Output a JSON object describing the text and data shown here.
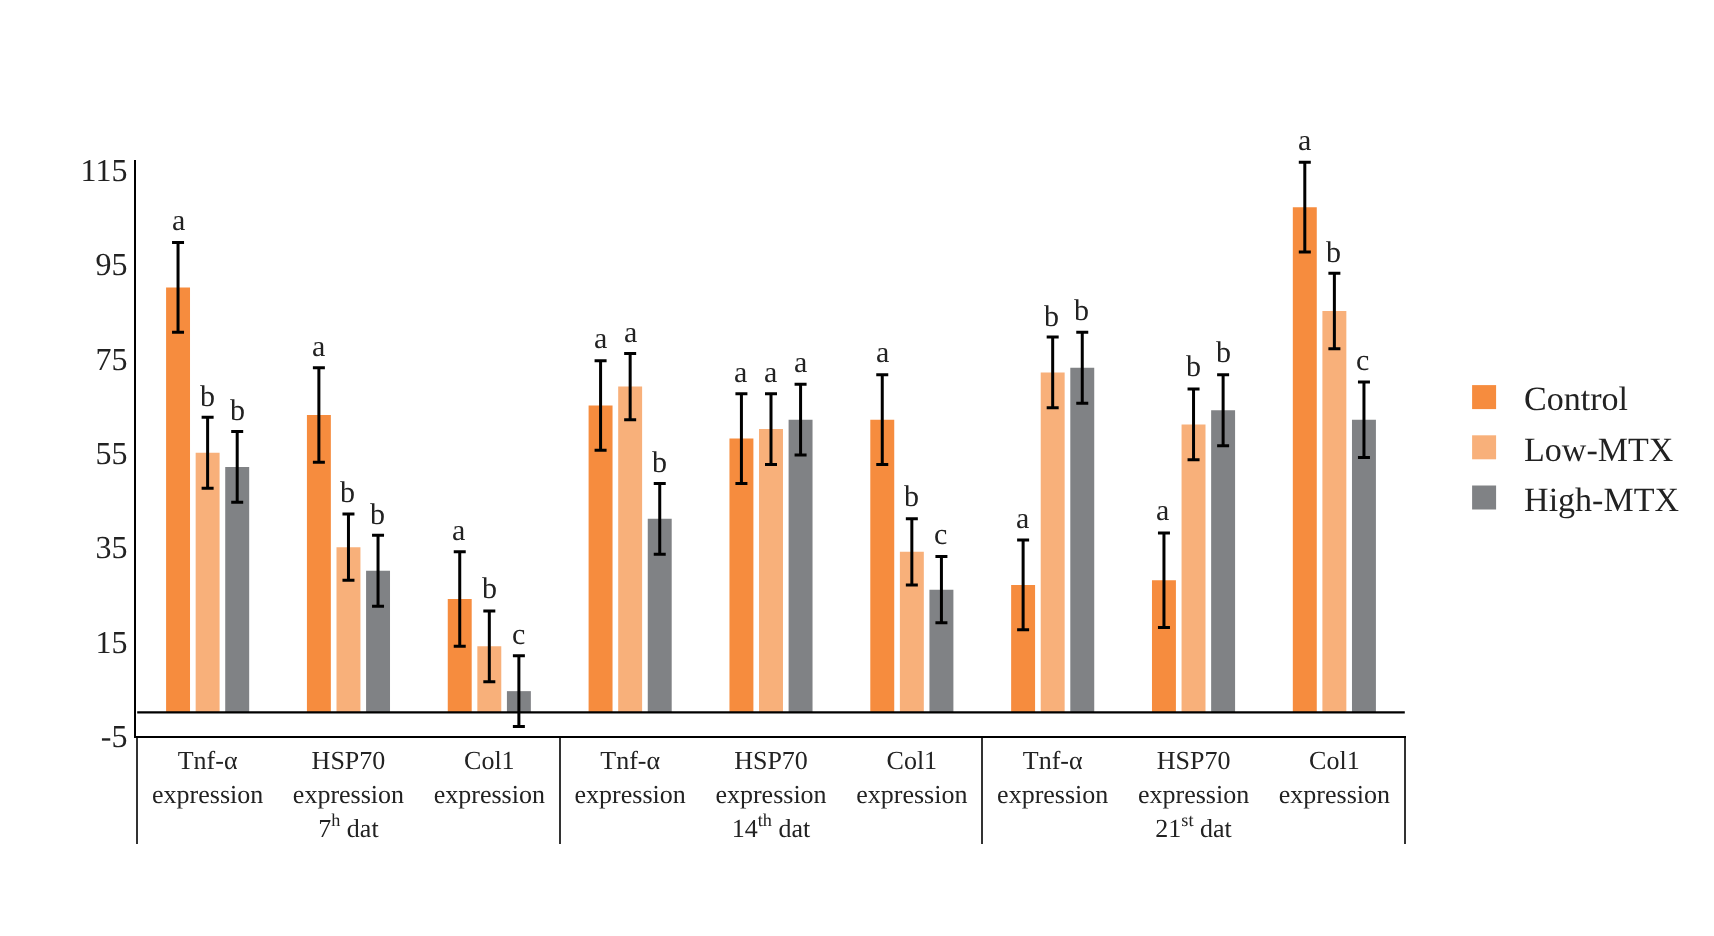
{
  "chart_data": {
    "type": "bar",
    "categories": [
      "Tnf-α expression",
      "HSP70 expression",
      "Col1 expression",
      "Tnf-α expression",
      "HSP70 expression",
      "Col1 expression",
      "Tnf-α expression",
      "HSP70 expression",
      "Col1 expression"
    ],
    "series": [
      {
        "name": "Control",
        "color": "#f68c3e",
        "values": [
          90,
          63,
          24,
          65,
          58,
          62,
          27,
          28,
          107
        ],
        "errors": [
          9.5,
          10,
          10,
          9.5,
          9.5,
          9.5,
          9.5,
          10,
          9.5
        ],
        "value_labels": [
          "a",
          "a",
          "a",
          "a",
          "a",
          "a",
          "a",
          "a",
          "a"
        ]
      },
      {
        "name": "Low-MTX",
        "color": "#f8b07a",
        "values": [
          55,
          35,
          14,
          69,
          60,
          34,
          72,
          61,
          85
        ],
        "errors": [
          7.5,
          7,
          7.5,
          7,
          7.5,
          7,
          7.5,
          7.5,
          8
        ],
        "value_labels": [
          "b",
          "b",
          "b",
          "a",
          "a",
          "b",
          "b",
          "b",
          "b"
        ]
      },
      {
        "name": "High-MTX",
        "color": "#808285",
        "values": [
          52,
          30,
          4.5,
          41,
          62,
          26,
          73,
          64,
          62
        ],
        "errors": [
          7.5,
          7.5,
          7.5,
          7.5,
          7.5,
          7,
          7.5,
          7.5,
          8
        ],
        "value_labels": [
          "b",
          "b",
          "c",
          "b",
          "a",
          "c",
          "b",
          "b",
          "c"
        ]
      }
    ],
    "ylim": [
      -5,
      117
    ],
    "yticks": [
      -5,
      15,
      35,
      55,
      75,
      95,
      115
    ],
    "ref_lines": [
      {
        "axis": "y",
        "value": 0
      }
    ],
    "annotations": [
      "7$^{h}$ dat",
      "14$^{th}$ dat",
      "21$^{st}$ dat"
    ],
    "grid": false,
    "legend": "right"
  }
}
